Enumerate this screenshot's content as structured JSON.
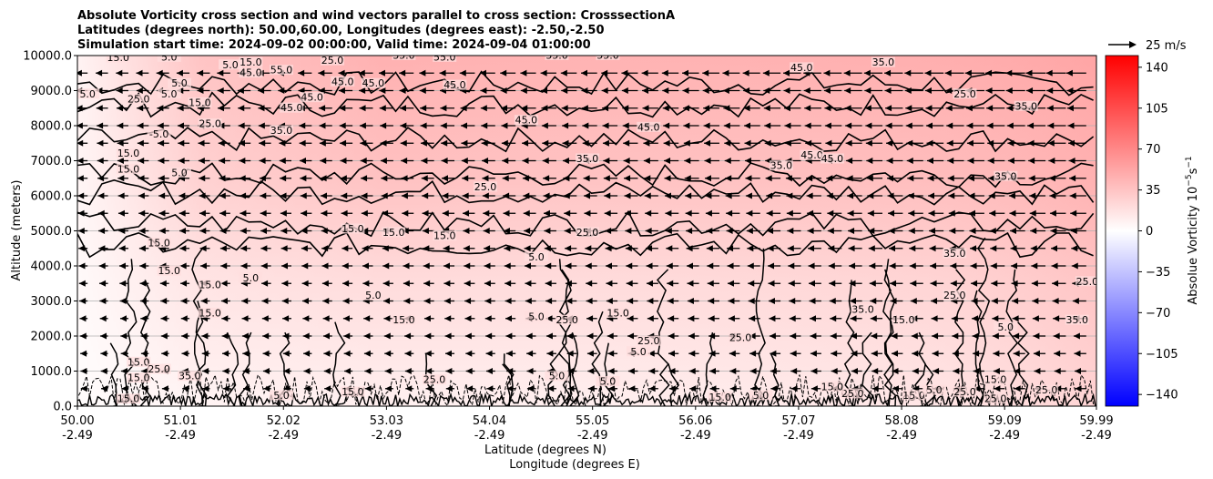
{
  "chart_data": {
    "type": "heatmap",
    "title_lines": [
      "Absolute Vorticity cross section and wind vectors parallel to cross section: CrosssectionA",
      "Latitudes (degrees north): 50.00,60.00, Longitudes (degrees east): -2.50,-2.50",
      "Simulation start time: 2024-09-02 00:00:00, Valid time: 2024-09-04 01:00:00"
    ],
    "ylabel": "Altitude (meters)",
    "xlabel_lines": [
      "Latitude (degrees N)",
      "Longitude (degrees E)"
    ],
    "ylim": [
      0,
      10000
    ],
    "y_ticks": [
      {
        "value": 0,
        "label": "0.0"
      },
      {
        "value": 1000,
        "label": "1000.0"
      },
      {
        "value": 2000,
        "label": "2000.0"
      },
      {
        "value": 3000,
        "label": "3000.0"
      },
      {
        "value": 4000,
        "label": "4000.0"
      },
      {
        "value": 5000,
        "label": "5000.0"
      },
      {
        "value": 6000,
        "label": "6000.0"
      },
      {
        "value": 7000,
        "label": "7000.0"
      },
      {
        "value": 8000,
        "label": "8000.0"
      },
      {
        "value": 9000,
        "label": "9000.0"
      },
      {
        "value": 10000,
        "label": "10000.0"
      }
    ],
    "xlim": [
      50.0,
      59.99
    ],
    "x_ticks": [
      {
        "value": 50.0,
        "lat": "50.00",
        "lon": "-2.49"
      },
      {
        "value": 51.01,
        "lat": "51.01",
        "lon": "-2.49"
      },
      {
        "value": 52.02,
        "lat": "52.02",
        "lon": "-2.49"
      },
      {
        "value": 53.03,
        "lat": "53.03",
        "lon": "-2.49"
      },
      {
        "value": 54.04,
        "lat": "54.04",
        "lon": "-2.49"
      },
      {
        "value": 55.05,
        "lat": "55.05",
        "lon": "-2.49"
      },
      {
        "value": 56.06,
        "lat": "56.06",
        "lon": "-2.49"
      },
      {
        "value": 57.07,
        "lat": "57.07",
        "lon": "-2.49"
      },
      {
        "value": 58.08,
        "lat": "58.08",
        "lon": "-2.49"
      },
      {
        "value": 59.09,
        "lat": "59.09",
        "lon": "-2.49"
      },
      {
        "value": 59.99,
        "lat": "59.99",
        "lon": "-2.49"
      }
    ],
    "colorbar": {
      "label": "Absolue Vorticity 10",
      "label_exponent": "−5",
      "label_unit": "s",
      "label_unit_exponent": "−1",
      "range": [
        -150,
        150
      ],
      "ticks": [
        {
          "value": 140,
          "label": "140"
        },
        {
          "value": 105,
          "label": "105"
        },
        {
          "value": 70,
          "label": "70"
        },
        {
          "value": 35,
          "label": "35"
        },
        {
          "value": 0,
          "label": "0"
        },
        {
          "value": -35,
          "label": "−35"
        },
        {
          "value": -70,
          "label": "−70"
        },
        {
          "value": -105,
          "label": "−105"
        },
        {
          "value": -140,
          "label": "−140"
        }
      ],
      "colors": {
        "low": "#0000ff",
        "mid": "#ffffff",
        "high": "#ff0000"
      }
    },
    "quiver_key": {
      "label": "25 m/s",
      "speed": 25
    },
    "wind_field": {
      "u_upper": -25,
      "u_lower": -14,
      "rows_altitudes": [
        500,
        1000,
        1500,
        2000,
        2500,
        3000,
        3500,
        4000,
        4500,
        5000,
        5500,
        6000,
        6500,
        7000,
        7500,
        8000,
        8500,
        9000,
        9500
      ],
      "grid": true
    },
    "vorticity_field": {
      "upper_level_mean": 40,
      "lower_level_mean": 15,
      "boundary_layer_turbulent": true
    },
    "contour_levels": [
      -5,
      5,
      15,
      25,
      35,
      45,
      55
    ],
    "contour_labels": [
      {
        "x": 50.4,
        "y": 9880,
        "text": "15.0"
      },
      {
        "x": 50.9,
        "y": 9900,
        "text": "5.0"
      },
      {
        "x": 51.5,
        "y": 9680,
        "text": "5.0"
      },
      {
        "x": 51.7,
        "y": 9450,
        "text": "45.0"
      },
      {
        "x": 51.7,
        "y": 9750,
        "text": "15.0"
      },
      {
        "x": 51.0,
        "y": 9150,
        "text": "5.0"
      },
      {
        "x": 50.1,
        "y": 8850,
        "text": "5.0"
      },
      {
        "x": 50.6,
        "y": 8700,
        "text": "25.0"
      },
      {
        "x": 50.9,
        "y": 8850,
        "text": "5.0"
      },
      {
        "x": 51.2,
        "y": 8600,
        "text": "15.0"
      },
      {
        "x": 52.0,
        "y": 9530,
        "text": "55.0"
      },
      {
        "x": 52.6,
        "y": 9200,
        "text": "45.0"
      },
      {
        "x": 51.3,
        "y": 8000,
        "text": "25.0"
      },
      {
        "x": 52.3,
        "y": 8750,
        "text": "45.0"
      },
      {
        "x": 52.1,
        "y": 8450,
        "text": "45.0"
      },
      {
        "x": 52.5,
        "y": 9800,
        "text": "25.0"
      },
      {
        "x": 53.2,
        "y": 9950,
        "text": "35.0"
      },
      {
        "x": 53.7,
        "y": 9100,
        "text": "45.0"
      },
      {
        "x": 52.9,
        "y": 9150,
        "text": "45.0"
      },
      {
        "x": 53.6,
        "y": 9900,
        "text": "55.0"
      },
      {
        "x": 54.4,
        "y": 8100,
        "text": "45.0"
      },
      {
        "x": 54.7,
        "y": 9950,
        "text": "35.0"
      },
      {
        "x": 55.2,
        "y": 9950,
        "text": "55.0"
      },
      {
        "x": 55.6,
        "y": 7900,
        "text": "45.0"
      },
      {
        "x": 57.1,
        "y": 9600,
        "text": "45.0"
      },
      {
        "x": 57.9,
        "y": 9750,
        "text": "35.0"
      },
      {
        "x": 59.3,
        "y": 8500,
        "text": "35.0"
      },
      {
        "x": 58.7,
        "y": 8850,
        "text": "25.0"
      },
      {
        "x": 57.2,
        "y": 7100,
        "text": "45.0"
      },
      {
        "x": 57.4,
        "y": 7000,
        "text": "45.0"
      },
      {
        "x": 56.9,
        "y": 6800,
        "text": "35.0"
      },
      {
        "x": 52.0,
        "y": 7800,
        "text": "35.0"
      },
      {
        "x": 50.8,
        "y": 7700,
        "text": "-5.0"
      },
      {
        "x": 50.5,
        "y": 7150,
        "text": "15.0"
      },
      {
        "x": 50.5,
        "y": 6700,
        "text": "15.0"
      },
      {
        "x": 51.0,
        "y": 6600,
        "text": "5.0"
      },
      {
        "x": 54.0,
        "y": 6200,
        "text": "25.0"
      },
      {
        "x": 55.0,
        "y": 7000,
        "text": "35.0"
      },
      {
        "x": 59.1,
        "y": 6500,
        "text": "35.0"
      },
      {
        "x": 52.7,
        "y": 5000,
        "text": "15.0"
      },
      {
        "x": 53.1,
        "y": 4900,
        "text": "15.0"
      },
      {
        "x": 53.6,
        "y": 4800,
        "text": "15.0"
      },
      {
        "x": 55.0,
        "y": 4900,
        "text": "25.0"
      },
      {
        "x": 50.8,
        "y": 4600,
        "text": "15.0"
      },
      {
        "x": 54.5,
        "y": 4200,
        "text": "5.0"
      },
      {
        "x": 58.6,
        "y": 4300,
        "text": "35.0"
      },
      {
        "x": 50.9,
        "y": 3800,
        "text": "15.0"
      },
      {
        "x": 51.3,
        "y": 3400,
        "text": "15.0"
      },
      {
        "x": 51.7,
        "y": 3600,
        "text": "5.0"
      },
      {
        "x": 52.9,
        "y": 3100,
        "text": "5.0"
      },
      {
        "x": 58.6,
        "y": 3100,
        "text": "25.0"
      },
      {
        "x": 59.9,
        "y": 3500,
        "text": "25.0"
      },
      {
        "x": 51.3,
        "y": 2600,
        "text": "15.0"
      },
      {
        "x": 57.7,
        "y": 2700,
        "text": "35.0"
      },
      {
        "x": 55.3,
        "y": 2600,
        "text": "15.0"
      },
      {
        "x": 53.2,
        "y": 2400,
        "text": "15.0"
      },
      {
        "x": 54.5,
        "y": 2500,
        "text": "5.0"
      },
      {
        "x": 54.8,
        "y": 2400,
        "text": "25.0"
      },
      {
        "x": 58.1,
        "y": 2400,
        "text": "15.0"
      },
      {
        "x": 59.1,
        "y": 2200,
        "text": "5.0"
      },
      {
        "x": 59.8,
        "y": 2400,
        "text": "35.0"
      },
      {
        "x": 55.6,
        "y": 1800,
        "text": "25.0"
      },
      {
        "x": 56.5,
        "y": 1900,
        "text": "25.0"
      },
      {
        "x": 55.5,
        "y": 1500,
        "text": "5.0"
      },
      {
        "x": 50.6,
        "y": 1200,
        "text": "15.0"
      },
      {
        "x": 50.8,
        "y": 1000,
        "text": "25.0"
      },
      {
        "x": 51.1,
        "y": 800,
        "text": "35.0"
      },
      {
        "x": 50.6,
        "y": 750,
        "text": "15.0"
      },
      {
        "x": 59.0,
        "y": 700,
        "text": "15.0"
      },
      {
        "x": 58.2,
        "y": 250,
        "text": "15.0"
      },
      {
        "x": 58.4,
        "y": 400,
        "text": "5.0"
      },
      {
        "x": 58.7,
        "y": 350,
        "text": "25.0"
      },
      {
        "x": 59.5,
        "y": 400,
        "text": "25.0"
      },
      {
        "x": 57.6,
        "y": 300,
        "text": "25.0"
      },
      {
        "x": 56.3,
        "y": 200,
        "text": "15.0"
      },
      {
        "x": 56.7,
        "y": 250,
        "text": "5.0"
      },
      {
        "x": 53.5,
        "y": 700,
        "text": "25.0"
      },
      {
        "x": 54.7,
        "y": 800,
        "text": "5.0"
      },
      {
        "x": 55.2,
        "y": 650,
        "text": "5.0"
      },
      {
        "x": 52.7,
        "y": 350,
        "text": "15.0"
      },
      {
        "x": 50.5,
        "y": 150,
        "text": "15.0"
      },
      {
        "x": 52.0,
        "y": 250,
        "text": "5.0"
      },
      {
        "x": 57.4,
        "y": 500,
        "text": "15.0"
      },
      {
        "x": 59.0,
        "y": 150,
        "text": "25.0"
      }
    ]
  }
}
